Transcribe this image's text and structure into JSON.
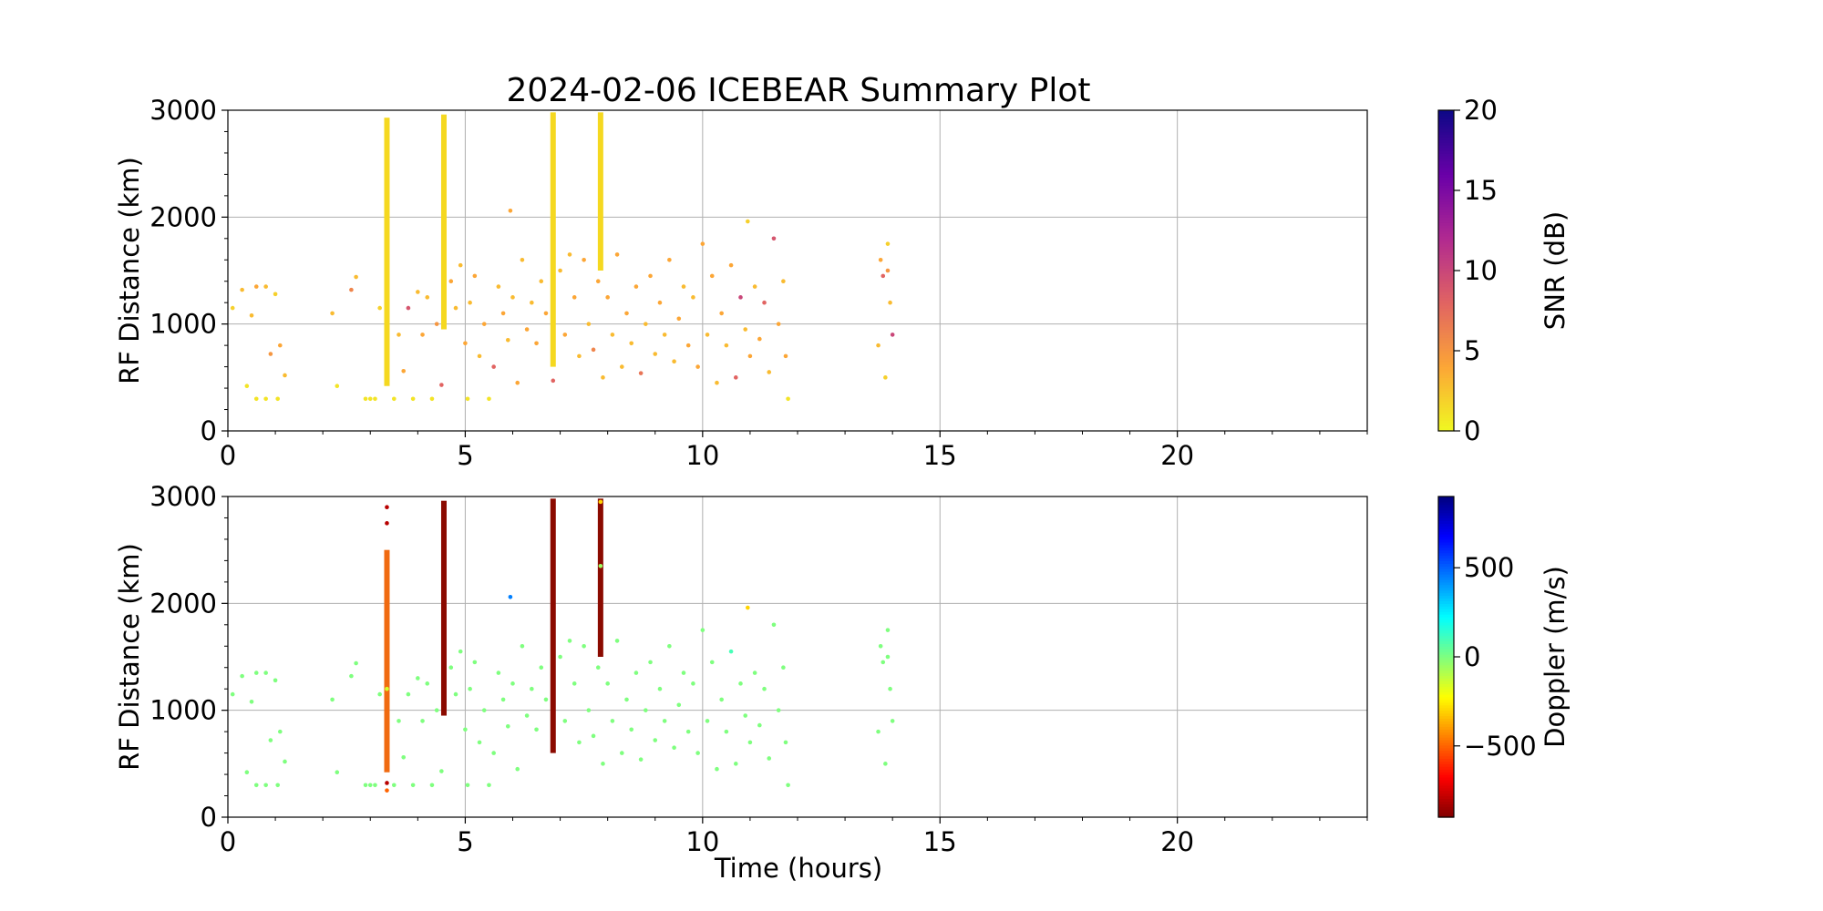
{
  "figure": {
    "title": "2024-02-06 ICEBEAR Summary Plot",
    "xlabel": "Time (hours)"
  },
  "chart_data": [
    {
      "type": "scatter",
      "panel": "snr",
      "title": "2024-02-06 ICEBEAR Summary Plot",
      "xlabel": "",
      "ylabel": "RF Distance (km)",
      "xlim": [
        0,
        24
      ],
      "ylim": [
        0,
        3000
      ],
      "xticks": [
        0,
        5,
        10,
        15,
        20
      ],
      "yticks": [
        0,
        1000,
        2000,
        3000
      ],
      "grid": true,
      "colorbar": {
        "label": "SNR (dB)",
        "range": [
          0,
          20
        ],
        "ticks": [
          0,
          5,
          10,
          15,
          20
        ],
        "colormap": "plasma_r",
        "stops": [
          "#f0f921",
          "#fca636",
          "#e16462",
          "#b12a90",
          "#6a00a8",
          "#0d0887"
        ]
      },
      "columns": [
        {
          "x": 3.35,
          "y_range": [
            420,
            2930
          ],
          "color": "#f5d820"
        },
        {
          "x": 4.55,
          "y_range": [
            950,
            2960
          ],
          "color": "#f5d820"
        },
        {
          "x": 6.85,
          "y_range": [
            600,
            2980
          ],
          "color": "#f5d820"
        },
        {
          "x": 7.85,
          "y_range": [
            1500,
            2980
          ],
          "color": "#f5d820"
        }
      ],
      "points": [
        [
          0.1,
          1150,
          2
        ],
        [
          0.3,
          1320,
          3
        ],
        [
          0.4,
          420,
          1
        ],
        [
          0.5,
          1080,
          3
        ],
        [
          0.6,
          1350,
          4
        ],
        [
          0.6,
          300,
          1
        ],
        [
          0.8,
          300,
          1
        ],
        [
          0.8,
          1350,
          3
        ],
        [
          0.9,
          720,
          5
        ],
        [
          1.0,
          1280,
          2
        ],
        [
          1.05,
          300,
          1
        ],
        [
          1.1,
          800,
          4
        ],
        [
          1.2,
          520,
          3
        ],
        [
          2.2,
          1100,
          3
        ],
        [
          2.3,
          420,
          1
        ],
        [
          2.6,
          1320,
          6
        ],
        [
          2.7,
          1440,
          3
        ],
        [
          2.9,
          300,
          1
        ],
        [
          3.0,
          300,
          1
        ],
        [
          3.1,
          300,
          1
        ],
        [
          3.2,
          1150,
          2
        ],
        [
          3.5,
          300,
          1
        ],
        [
          3.6,
          900,
          3
        ],
        [
          3.7,
          560,
          4
        ],
        [
          3.8,
          1150,
          9
        ],
        [
          3.9,
          300,
          1
        ],
        [
          4.0,
          1300,
          3
        ],
        [
          4.1,
          900,
          4
        ],
        [
          4.2,
          1250,
          3
        ],
        [
          4.3,
          300,
          1
        ],
        [
          4.4,
          1000,
          5
        ],
        [
          4.5,
          430,
          8
        ],
        [
          4.7,
          1400,
          4
        ],
        [
          4.8,
          1150,
          3
        ],
        [
          4.9,
          1550,
          3
        ],
        [
          5.0,
          820,
          4
        ],
        [
          5.05,
          300,
          1
        ],
        [
          5.1,
          1200,
          3
        ],
        [
          5.2,
          1450,
          4
        ],
        [
          5.3,
          700,
          3
        ],
        [
          5.4,
          1000,
          4
        ],
        [
          5.5,
          300,
          1
        ],
        [
          5.6,
          600,
          8
        ],
        [
          5.7,
          1350,
          3
        ],
        [
          5.8,
          1100,
          4
        ],
        [
          5.9,
          850,
          3
        ],
        [
          5.95,
          2060,
          4
        ],
        [
          6.0,
          1250,
          3
        ],
        [
          6.1,
          450,
          4
        ],
        [
          6.2,
          1600,
          3
        ],
        [
          6.3,
          950,
          4
        ],
        [
          6.4,
          1200,
          3
        ],
        [
          6.5,
          820,
          4
        ],
        [
          6.6,
          1400,
          3
        ],
        [
          6.7,
          1100,
          4
        ],
        [
          6.85,
          470,
          8
        ],
        [
          7.0,
          1500,
          3
        ],
        [
          7.1,
          900,
          4
        ],
        [
          7.2,
          1650,
          3
        ],
        [
          7.3,
          1250,
          4
        ],
        [
          7.4,
          700,
          3
        ],
        [
          7.5,
          1600,
          4
        ],
        [
          7.6,
          1000,
          3
        ],
        [
          7.7,
          760,
          6
        ],
        [
          7.8,
          1400,
          4
        ],
        [
          7.9,
          500,
          3
        ],
        [
          8.0,
          1250,
          4
        ],
        [
          8.1,
          900,
          3
        ],
        [
          8.2,
          1650,
          4
        ],
        [
          8.3,
          600,
          3
        ],
        [
          8.4,
          1100,
          4
        ],
        [
          8.5,
          820,
          3
        ],
        [
          8.6,
          1350,
          4
        ],
        [
          8.7,
          540,
          7
        ],
        [
          8.8,
          1000,
          3
        ],
        [
          8.9,
          1450,
          4
        ],
        [
          9.0,
          720,
          3
        ],
        [
          9.1,
          1200,
          4
        ],
        [
          9.2,
          900,
          3
        ],
        [
          9.3,
          1600,
          4
        ],
        [
          9.4,
          650,
          3
        ],
        [
          9.5,
          1050,
          4
        ],
        [
          9.6,
          1350,
          3
        ],
        [
          9.7,
          800,
          4
        ],
        [
          9.8,
          1250,
          3
        ],
        [
          9.9,
          600,
          4
        ],
        [
          10.0,
          1750,
          4
        ],
        [
          10.1,
          900,
          3
        ],
        [
          10.2,
          1450,
          4
        ],
        [
          10.3,
          450,
          3
        ],
        [
          10.4,
          1100,
          4
        ],
        [
          10.5,
          800,
          3
        ],
        [
          10.6,
          1550,
          4
        ],
        [
          10.7,
          500,
          8
        ],
        [
          10.8,
          1250,
          10
        ],
        [
          10.9,
          950,
          3
        ],
        [
          10.95,
          1960,
          2
        ],
        [
          11.0,
          700,
          4
        ],
        [
          11.1,
          1350,
          3
        ],
        [
          11.2,
          860,
          4
        ],
        [
          11.3,
          1200,
          8
        ],
        [
          11.4,
          550,
          3
        ],
        [
          11.5,
          1800,
          9
        ],
        [
          11.6,
          1000,
          4
        ],
        [
          11.7,
          1400,
          3
        ],
        [
          11.8,
          300,
          1
        ],
        [
          11.75,
          700,
          4
        ],
        [
          13.7,
          800,
          3
        ],
        [
          13.75,
          1600,
          4
        ],
        [
          13.8,
          1450,
          8
        ],
        [
          13.85,
          500,
          2
        ],
        [
          13.9,
          1500,
          5
        ],
        [
          13.95,
          1200,
          3
        ],
        [
          14.0,
          900,
          10
        ],
        [
          13.9,
          1750,
          2
        ]
      ]
    },
    {
      "type": "scatter",
      "panel": "doppler",
      "xlabel": "Time (hours)",
      "ylabel": "RF Distance (km)",
      "xlim": [
        0,
        24
      ],
      "ylim": [
        0,
        3000
      ],
      "xticks": [
        0,
        5,
        10,
        15,
        20
      ],
      "yticks": [
        0,
        1000,
        2000,
        3000
      ],
      "grid": true,
      "colorbar": {
        "label": "Doppler (m/s)",
        "range": [
          -900,
          900
        ],
        "ticks": [
          -500,
          0,
          500
        ],
        "colormap": "jet_r",
        "stops": [
          "#7f0000",
          "#ff0000",
          "#ff7f00",
          "#ffff00",
          "#7fff7f",
          "#00ffff",
          "#007fff",
          "#0000ff",
          "#00007f"
        ]
      },
      "columns": [
        {
          "x": 3.35,
          "y_range": [
            420,
            2500
          ],
          "color": "#f06a10"
        },
        {
          "x": 4.55,
          "y_range": [
            950,
            2960
          ],
          "color": "#8b0a00"
        },
        {
          "x": 6.85,
          "y_range": [
            600,
            2980
          ],
          "color": "#8b0a00"
        },
        {
          "x": 7.85,
          "y_range": [
            1500,
            2980
          ],
          "color": "#8b0a00"
        }
      ],
      "points": [
        [
          0.1,
          1150,
          0
        ],
        [
          0.3,
          1320,
          0
        ],
        [
          0.4,
          420,
          0
        ],
        [
          0.5,
          1080,
          0
        ],
        [
          0.6,
          1350,
          0
        ],
        [
          0.6,
          300,
          0
        ],
        [
          0.8,
          300,
          0
        ],
        [
          0.8,
          1350,
          0
        ],
        [
          0.9,
          720,
          0
        ],
        [
          1.0,
          1280,
          0
        ],
        [
          1.05,
          300,
          0
        ],
        [
          1.1,
          800,
          0
        ],
        [
          1.2,
          520,
          0
        ],
        [
          2.2,
          1100,
          0
        ],
        [
          2.3,
          420,
          0
        ],
        [
          2.6,
          1320,
          0
        ],
        [
          2.7,
          1440,
          0
        ],
        [
          2.9,
          300,
          0
        ],
        [
          3.0,
          300,
          0
        ],
        [
          3.1,
          300,
          0
        ],
        [
          3.2,
          1150,
          0
        ],
        [
          3.35,
          1200,
          -150
        ],
        [
          3.35,
          2750,
          -800
        ],
        [
          3.35,
          2900,
          -800
        ],
        [
          3.35,
          250,
          -500
        ],
        [
          3.35,
          320,
          -800
        ],
        [
          3.5,
          300,
          0
        ],
        [
          3.6,
          900,
          0
        ],
        [
          3.7,
          560,
          0
        ],
        [
          3.8,
          1150,
          0
        ],
        [
          3.9,
          300,
          0
        ],
        [
          4.0,
          1300,
          0
        ],
        [
          4.1,
          900,
          0
        ],
        [
          4.2,
          1250,
          0
        ],
        [
          4.3,
          300,
          0
        ],
        [
          4.4,
          1000,
          0
        ],
        [
          4.5,
          430,
          0
        ],
        [
          4.7,
          1400,
          0
        ],
        [
          4.8,
          1150,
          0
        ],
        [
          4.9,
          1550,
          0
        ],
        [
          5.0,
          820,
          0
        ],
        [
          5.05,
          300,
          0
        ],
        [
          5.1,
          1200,
          0
        ],
        [
          5.2,
          1450,
          0
        ],
        [
          5.3,
          700,
          0
        ],
        [
          5.4,
          1000,
          0
        ],
        [
          5.5,
          300,
          0
        ],
        [
          5.6,
          600,
          0
        ],
        [
          5.7,
          1350,
          0
        ],
        [
          5.8,
          1100,
          0
        ],
        [
          5.9,
          850,
          0
        ],
        [
          5.95,
          2060,
          450
        ],
        [
          6.0,
          1250,
          0
        ],
        [
          6.1,
          450,
          0
        ],
        [
          6.2,
          1600,
          0
        ],
        [
          6.3,
          950,
          0
        ],
        [
          6.4,
          1200,
          0
        ],
        [
          6.5,
          820,
          0
        ],
        [
          6.6,
          1400,
          0
        ],
        [
          6.7,
          1100,
          0
        ],
        [
          7.0,
          1500,
          0
        ],
        [
          7.1,
          900,
          0
        ],
        [
          7.2,
          1650,
          0
        ],
        [
          7.3,
          1250,
          0
        ],
        [
          7.4,
          700,
          0
        ],
        [
          7.5,
          1600,
          0
        ],
        [
          7.6,
          1000,
          0
        ],
        [
          7.7,
          760,
          0
        ],
        [
          7.8,
          1400,
          0
        ],
        [
          7.85,
          2350,
          -50
        ],
        [
          7.85,
          2950,
          -300
        ],
        [
          7.9,
          500,
          0
        ],
        [
          8.0,
          1250,
          0
        ],
        [
          8.1,
          900,
          0
        ],
        [
          8.2,
          1650,
          0
        ],
        [
          8.3,
          600,
          0
        ],
        [
          8.4,
          1100,
          0
        ],
        [
          8.5,
          820,
          0
        ],
        [
          8.6,
          1350,
          0
        ],
        [
          8.7,
          540,
          0
        ],
        [
          8.8,
          1000,
          0
        ],
        [
          8.9,
          1450,
          0
        ],
        [
          9.0,
          720,
          0
        ],
        [
          9.1,
          1200,
          0
        ],
        [
          9.2,
          900,
          0
        ],
        [
          9.3,
          1600,
          0
        ],
        [
          9.4,
          650,
          0
        ],
        [
          9.5,
          1050,
          0
        ],
        [
          9.6,
          1350,
          0
        ],
        [
          9.7,
          800,
          0
        ],
        [
          9.8,
          1250,
          0
        ],
        [
          9.9,
          600,
          0
        ],
        [
          10.0,
          1750,
          0
        ],
        [
          10.1,
          900,
          0
        ],
        [
          10.2,
          1450,
          0
        ],
        [
          10.3,
          450,
          0
        ],
        [
          10.4,
          1100,
          0
        ],
        [
          10.5,
          800,
          0
        ],
        [
          10.6,
          1550,
          100
        ],
        [
          10.7,
          500,
          0
        ],
        [
          10.8,
          1250,
          0
        ],
        [
          10.9,
          950,
          0
        ],
        [
          10.95,
          1960,
          -300
        ],
        [
          11.0,
          700,
          0
        ],
        [
          11.1,
          1350,
          0
        ],
        [
          11.2,
          860,
          0
        ],
        [
          11.3,
          1200,
          0
        ],
        [
          11.4,
          550,
          0
        ],
        [
          11.5,
          1800,
          0
        ],
        [
          11.6,
          1000,
          0
        ],
        [
          11.7,
          1400,
          0
        ],
        [
          11.8,
          300,
          0
        ],
        [
          11.75,
          700,
          0
        ],
        [
          13.7,
          800,
          0
        ],
        [
          13.75,
          1600,
          0
        ],
        [
          13.8,
          1450,
          0
        ],
        [
          13.85,
          500,
          0
        ],
        [
          13.9,
          1500,
          0
        ],
        [
          13.95,
          1200,
          0
        ],
        [
          14.0,
          900,
          0
        ],
        [
          13.9,
          1750,
          0
        ]
      ]
    }
  ]
}
